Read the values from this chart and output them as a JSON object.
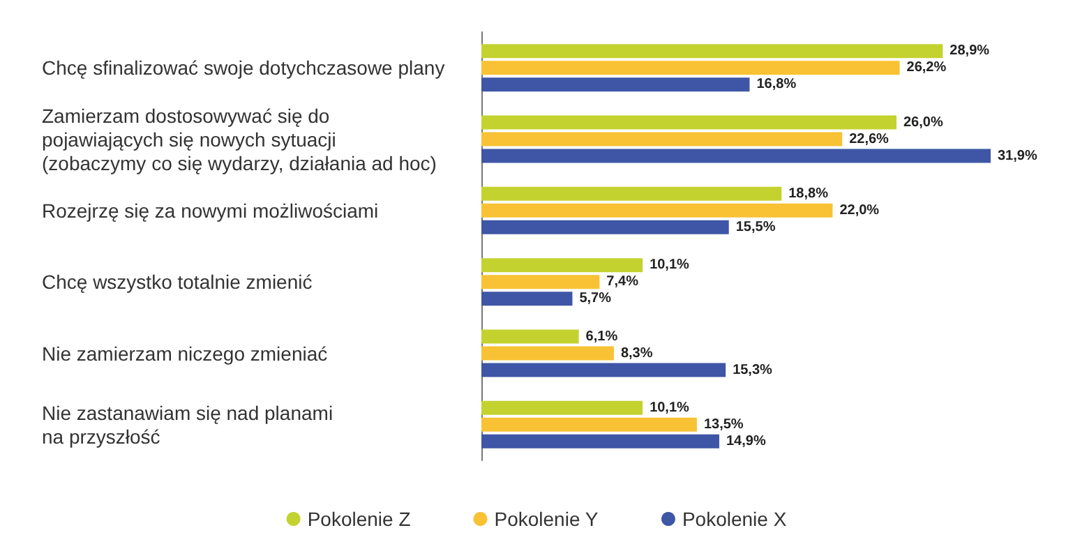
{
  "chart_data": {
    "type": "bar",
    "orientation": "horizontal",
    "categories": [
      "Chcę sfinalizować swoje dotychczasowe plany",
      "Zamierzam dostosowywać się do\npojawiających się nowych sytuacji\n(zobaczymy co się wydarzy, działania ad hoc)",
      "Rozejrzę się za nowymi możliwościami",
      "Chcę wszystko totalnie zmienić",
      "Nie zamierzam niczego zmieniać",
      "Nie zastanawiam się nad planami\nna przyszłość"
    ],
    "series": [
      {
        "name": "Pokolenie Z",
        "color": "#c3d22f",
        "values": [
          28.9,
          26.0,
          18.8,
          10.1,
          6.1,
          10.1
        ],
        "value_labels": [
          "28,9%",
          "26,0%",
          "18,8%",
          "10,1%",
          "6,1%",
          "10,1%"
        ]
      },
      {
        "name": "Pokolenie Y",
        "color": "#f8c234",
        "values": [
          26.2,
          22.6,
          22.0,
          7.4,
          8.3,
          13.5
        ],
        "value_labels": [
          "26,2%",
          "22,6%",
          "22,0%",
          "7,4%",
          "8,3%",
          "13,5%"
        ]
      },
      {
        "name": "Pokolenie X",
        "color": "#3e56a5",
        "values": [
          16.8,
          31.9,
          15.5,
          5.7,
          15.3,
          14.9
        ],
        "value_labels": [
          "16,8%",
          "31,9%",
          "15,5%",
          "5,7%",
          "15,3%",
          "14,9%"
        ]
      }
    ],
    "legend": "bottom",
    "grid": false,
    "tick_labels": "y"
  }
}
